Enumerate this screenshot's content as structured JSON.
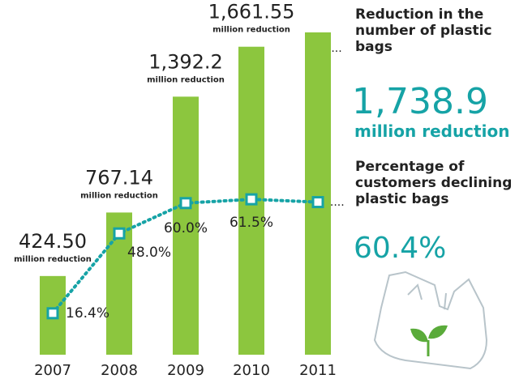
{
  "chart_data": {
    "type": "bar-line",
    "categories": [
      "2007",
      "2008",
      "2009",
      "2010",
      "2011"
    ],
    "unit_label": "million reduction",
    "series": [
      {
        "name": "Reduction in the number of plastic bags",
        "type": "bar",
        "color": "#8cc63e",
        "values": [
          424.5,
          767.14,
          1392.2,
          1661.55,
          1738.9
        ],
        "value_labels": [
          "424.50",
          "767.14",
          "1,392.2",
          "1,661.55",
          "1,738.9"
        ]
      },
      {
        "name": "Percentage of customers declining plastic bags",
        "type": "line",
        "color": "#16a3a6",
        "values": [
          16.4,
          48.0,
          60.0,
          61.5,
          60.4
        ],
        "value_labels": [
          "16.4%",
          "48.0%",
          "60.0%",
          "61.5%",
          "60.4%"
        ]
      }
    ]
  }
}
